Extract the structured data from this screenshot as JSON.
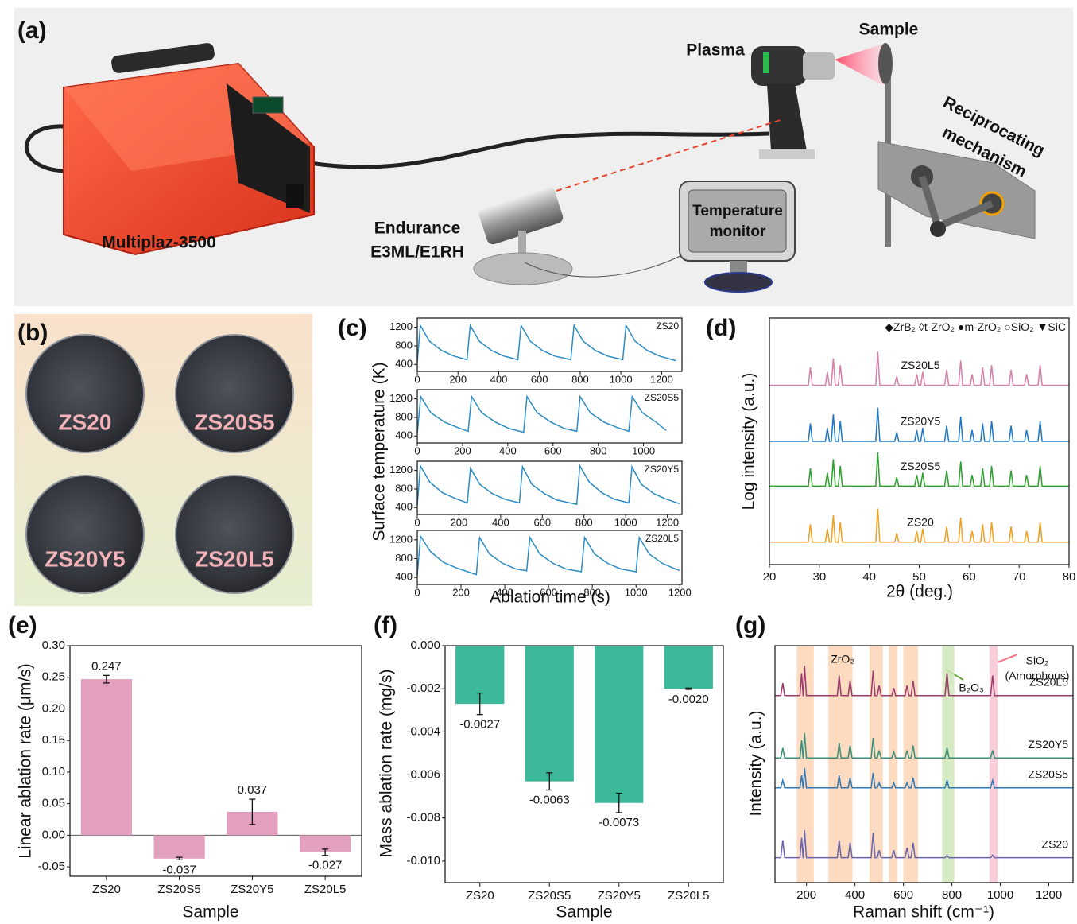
{
  "figure": {
    "panel_labels": [
      "(a)",
      "(b)",
      "(c)",
      "(d)",
      "(e)",
      "(f)",
      "(g)"
    ],
    "diagram": {
      "device": "Multiplaz-3500",
      "plasma": "Plasma",
      "sample": "Sample",
      "mechanism": [
        "Reciprocating",
        "mechanism"
      ],
      "pyrometer": [
        "Endurance",
        "E3ML/E1RH"
      ],
      "monitor": [
        "Temperature",
        "monitor"
      ]
    },
    "photos": {
      "samples": [
        "ZS20",
        "ZS20S5",
        "ZS20Y5",
        "ZS20L5"
      ]
    }
  },
  "chart_data": [
    {
      "type": "line",
      "ylabel": "Surface temperature (K)",
      "xlim": [
        0,
        1300
      ],
      "xticks": [
        0,
        200,
        400,
        600,
        800,
        1000,
        1200
      ],
      "ylim": [
        250,
        1400
      ],
      "yticks": [
        400,
        800,
        1200
      ],
      "series": [
        {
          "name": "ZS20",
          "color": "#2b8cc4",
          "x": [
            0,
            15,
            60,
            120,
            180,
            244,
            260,
            305,
            365,
            425,
            494,
            510,
            555,
            615,
            675,
            754,
            770,
            815,
            875,
            935,
            1009,
            1025,
            1070,
            1130,
            1190,
            1270
          ],
          "values": [
            450,
            1240,
            900,
            700,
            580,
            500,
            1240,
            900,
            700,
            580,
            500,
            1240,
            900,
            700,
            580,
            500,
            1240,
            900,
            700,
            580,
            500,
            1240,
            900,
            700,
            580,
            480
          ]
        }
      ]
    },
    {
      "type": "line",
      "xlim": [
        0,
        1170
      ],
      "xticks": [
        0,
        200,
        400,
        600,
        800,
        1000
      ],
      "ylim": [
        250,
        1400
      ],
      "yticks": [
        400,
        800,
        1200
      ],
      "series": [
        {
          "name": "ZS20S5",
          "color": "#2b8cc4",
          "x": [
            0,
            15,
            60,
            120,
            180,
            225,
            240,
            285,
            345,
            405,
            470,
            485,
            530,
            590,
            650,
            705,
            720,
            765,
            825,
            885,
            935,
            950,
            995,
            1055,
            1100
          ],
          "values": [
            450,
            1250,
            900,
            700,
            580,
            500,
            1250,
            900,
            700,
            560,
            480,
            1250,
            900,
            700,
            560,
            500,
            1250,
            900,
            700,
            580,
            500,
            1250,
            900,
            700,
            520
          ]
        }
      ]
    },
    {
      "type": "line",
      "xlim": [
        0,
        1270
      ],
      "xticks": [
        0,
        200,
        400,
        600,
        800,
        1000,
        1200
      ],
      "ylim": [
        250,
        1400
      ],
      "yticks": [
        400,
        800,
        1200
      ],
      "series": [
        {
          "name": "ZS20Y5",
          "color": "#2b8cc4",
          "x": [
            0,
            15,
            60,
            120,
            180,
            240,
            255,
            300,
            360,
            420,
            490,
            505,
            550,
            610,
            670,
            765,
            780,
            825,
            885,
            945,
            1015,
            1030,
            1075,
            1135,
            1195,
            1260
          ],
          "values": [
            450,
            1300,
            950,
            720,
            600,
            500,
            1250,
            900,
            700,
            580,
            500,
            1280,
            900,
            700,
            560,
            470,
            1300,
            950,
            720,
            580,
            500,
            1280,
            900,
            700,
            580,
            480
          ]
        }
      ]
    },
    {
      "type": "line",
      "xlabel": "Ablation time (s)",
      "xlim": [
        0,
        1210
      ],
      "xticks": [
        0,
        200,
        400,
        600,
        800,
        1000,
        1200
      ],
      "ylim": [
        250,
        1400
      ],
      "yticks": [
        400,
        800,
        1200
      ],
      "series": [
        {
          "name": "ZS20L5",
          "color": "#2b8cc4",
          "x": [
            0,
            15,
            60,
            120,
            180,
            270,
            285,
            330,
            390,
            450,
            500,
            515,
            560,
            620,
            680,
            750,
            765,
            810,
            870,
            930,
            1000,
            1015,
            1060,
            1120,
            1180,
            1200
          ],
          "values": [
            450,
            1280,
            950,
            720,
            600,
            460,
            1250,
            900,
            700,
            580,
            540,
            1250,
            900,
            700,
            580,
            520,
            1250,
            900,
            700,
            580,
            520,
            1250,
            900,
            700,
            580,
            550
          ]
        }
      ]
    },
    {
      "type": "line",
      "xlabel": "2θ (deg.)",
      "ylabel": "Log intensity (a.u.)",
      "xlim": [
        20,
        80
      ],
      "xticks": [
        20,
        30,
        40,
        50,
        60,
        70,
        80
      ],
      "ylim": [
        0,
        11
      ],
      "legend": [
        "◆ZrB₂",
        "◊t-ZrO₂",
        "●m-ZrO₂",
        "○SiO₂",
        "▼SiC"
      ],
      "x": [
        20,
        27.8,
        28.2,
        28.6,
        31.2,
        31.6,
        32.0,
        32.4,
        32.8,
        33.2,
        33.8,
        34.2,
        34.6,
        41.3,
        41.7,
        42.1,
        45.1,
        45.5,
        45.9,
        49.1,
        49.5,
        49.9,
        50.3,
        50.7,
        51.1,
        55.1,
        55.5,
        55.9,
        57.9,
        58.3,
        58.7,
        60.2,
        60.6,
        61.0,
        62.3,
        62.7,
        63.1,
        64.1,
        64.5,
        64.9,
        68.0,
        68.4,
        68.8,
        71.1,
        71.5,
        71.9,
        73.8,
        74.2,
        74.6,
        80
      ],
      "series": [
        {
          "name": "ZS20L5",
          "color": "#d67fa8",
          "values": [
            8,
            8,
            8.8,
            8,
            8,
            8.6,
            8,
            8,
            9.2,
            8,
            8,
            8.9,
            8,
            8,
            9.5,
            8,
            8,
            8.4,
            8,
            8,
            8.5,
            8,
            8,
            8.6,
            8,
            8,
            8.7,
            8,
            8,
            9.1,
            8,
            8,
            8.5,
            8,
            8,
            8.8,
            8,
            8,
            8.9,
            8,
            8,
            8.7,
            8,
            8,
            8.5,
            8,
            8,
            8.9,
            8,
            8
          ]
        },
        {
          "name": "ZS20Y5",
          "color": "#1f77c4",
          "values": [
            5.5,
            5.5,
            6.3,
            5.5,
            5.5,
            6.1,
            5.5,
            5.5,
            6.7,
            5.5,
            5.5,
            6.4,
            5.5,
            5.5,
            7,
            5.5,
            5.5,
            5.9,
            5.5,
            5.5,
            6,
            5.5,
            5.5,
            6.1,
            5.5,
            5.5,
            6.2,
            5.5,
            5.5,
            6.6,
            5.5,
            5.5,
            6,
            5.5,
            5.5,
            6.3,
            5.5,
            5.5,
            6.4,
            5.5,
            5.5,
            6.2,
            5.5,
            5.5,
            6,
            5.5,
            5.5,
            6.4,
            5.5,
            5.5
          ]
        },
        {
          "name": "ZS20S5",
          "color": "#2ca02c",
          "values": [
            3.5,
            3.5,
            4.3,
            3.5,
            3.5,
            4.1,
            3.5,
            3.5,
            4.7,
            3.5,
            3.5,
            4.4,
            3.5,
            3.5,
            5,
            3.5,
            3.5,
            3.9,
            3.5,
            3.5,
            4,
            3.5,
            3.5,
            4.1,
            3.5,
            3.5,
            4.2,
            3.5,
            3.5,
            4.6,
            3.5,
            3.5,
            4,
            3.5,
            3.5,
            4.3,
            3.5,
            3.5,
            4.4,
            3.5,
            3.5,
            4.2,
            3.5,
            3.5,
            4,
            3.5,
            3.5,
            4.4,
            3.5,
            3.5
          ]
        },
        {
          "name": "ZS20",
          "color": "#f0a020",
          "values": [
            1,
            1,
            1.8,
            1,
            1,
            1.6,
            1,
            1,
            2.2,
            1,
            1,
            1.9,
            1,
            1,
            2.5,
            1,
            1,
            1.4,
            1,
            1,
            1.5,
            1,
            1,
            1.6,
            1,
            1,
            1.7,
            1,
            1,
            2.1,
            1,
            1,
            1.5,
            1,
            1,
            1.8,
            1,
            1,
            1.9,
            1,
            1,
            1.7,
            1,
            1,
            1.5,
            1,
            1,
            1.9,
            1,
            1
          ]
        }
      ]
    },
    {
      "type": "bar",
      "xlabel": "Sample",
      "ylabel": "Linear ablation rate (μm/s)",
      "categories": [
        "ZS20",
        "ZS20S5",
        "ZS20Y5",
        "ZS20L5"
      ],
      "values": [
        0.247,
        -0.037,
        0.037,
        -0.027
      ],
      "errors": [
        0.006,
        0.002,
        0.02,
        0.005
      ],
      "color": "#e39fbe",
      "ylim": [
        -0.065,
        0.3
      ],
      "yticks": [
        -0.05,
        {
          "value": 0,
          "label": "0.00"
        },
        0.05,
        {
          "value": 0.1,
          "label": "0.10"
        },
        0.15,
        {
          "value": 0.2,
          "label": "0.20"
        },
        0.25,
        {
          "value": 0.3,
          "label": "0.30"
        }
      ]
    },
    {
      "type": "bar",
      "xlabel": "Sample",
      "ylabel": "Mass ablation rate (mg/s)",
      "categories": [
        "ZS20",
        "ZS20S5",
        "ZS20Y5",
        "ZS20L5"
      ],
      "values": [
        -0.0027,
        -0.0063,
        -0.0073,
        -0.002
      ],
      "value_labels": [
        "-0.0027",
        "-0.0063",
        "-0.0073",
        "-0.0020"
      ],
      "errors": [
        0.0005,
        0.0004,
        0.00045,
        3e-05
      ],
      "color": "#3db89a",
      "ylim": [
        -0.011,
        0
      ],
      "yticks": [
        {
          "value": 0,
          "label": "0.000"
        },
        {
          "value": -0.002,
          "label": "-0.002"
        },
        {
          "value": -0.004,
          "label": "-0.004"
        },
        {
          "value": -0.006,
          "label": "-0.006"
        },
        {
          "value": -0.008,
          "label": "-0.008"
        },
        {
          "value": -0.01,
          "label": "-0.010"
        }
      ]
    },
    {
      "type": "line",
      "xlabel": "Raman shift (cm⁻¹)",
      "ylabel": "Intensity (a.u.)",
      "xlim": [
        70,
        1300
      ],
      "xticks": [
        200,
        400,
        600,
        800,
        1000,
        1200
      ],
      "ylim": [
        0,
        9.5
      ],
      "annotations": [
        "ZrO₂",
        "B₂O₃",
        "SiO₂",
        "(Amorphous)"
      ],
      "bands": [
        {
          "x": [
            160,
            230
          ],
          "color": "#fbd5b5"
        },
        {
          "x": [
            290,
            390
          ],
          "color": "#fbd5b5"
        },
        {
          "x": [
            460,
            515
          ],
          "color": "#fbd5b5"
        },
        {
          "x": [
            540,
            575
          ],
          "color": "#fbd5b5"
        },
        {
          "x": [
            600,
            660
          ],
          "color": "#fbd5b5"
        },
        {
          "x": [
            760,
            810
          ],
          "color": "#cfe6b8"
        },
        {
          "x": [
            955,
            990
          ],
          "color": "#f7c6d3"
        }
      ],
      "x": [
        70,
        94,
        102,
        110,
        173,
        180,
        186,
        187,
        192,
        200,
        327,
        335,
        343,
        372,
        380,
        388,
        467,
        475,
        483,
        492,
        500,
        508,
        552,
        560,
        568,
        607,
        615,
        623,
        632,
        640,
        648,
        772,
        780,
        788,
        960,
        968,
        976,
        1300
      ],
      "series": [
        {
          "name": "ZS20L5",
          "color": "#9c3a6b",
          "values": [
            7.5,
            7.5,
            8,
            7.5,
            7.5,
            8.4,
            7.5,
            7.5,
            8.7,
            7.5,
            7.5,
            8.3,
            7.5,
            7.5,
            8.1,
            7.5,
            7.5,
            8.5,
            7.5,
            7.5,
            7.9,
            7.5,
            7.5,
            7.8,
            7.5,
            7.5,
            7.9,
            7.5,
            7.5,
            8.1,
            7.5,
            7.5,
            8.4,
            7.5,
            7.5,
            8.3,
            7.5,
            7.5
          ]
        },
        {
          "name": "ZS20Y5",
          "color": "#3a8f7a",
          "values": [
            5,
            5,
            5.4,
            5,
            5,
            5.7,
            5,
            5,
            6,
            5,
            5,
            5.6,
            5,
            5,
            5.5,
            5,
            5,
            5.8,
            5,
            5,
            5.3,
            5,
            5,
            5.25,
            5,
            5,
            5.3,
            5,
            5,
            5.5,
            5,
            5,
            5.4,
            5,
            5,
            5.3,
            5,
            5
          ]
        },
        {
          "name": "ZS20S5",
          "color": "#2f78b5",
          "values": [
            3.8,
            3.8,
            4.1,
            3.8,
            3.8,
            4.3,
            3.8,
            3.8,
            4.6,
            3.8,
            3.8,
            4.3,
            3.8,
            3.8,
            4.2,
            3.8,
            3.8,
            4.4,
            3.8,
            3.8,
            4,
            3.8,
            3.8,
            4,
            3.8,
            3.8,
            4,
            3.8,
            3.8,
            4.2,
            3.8,
            3.8,
            4.1,
            3.8,
            3.8,
            4.1,
            3.8,
            3.8
          ]
        },
        {
          "name": "ZS20",
          "color": "#6a64a8",
          "values": [
            1,
            1,
            1.7,
            1,
            1,
            1.8,
            1,
            1,
            2.1,
            1,
            1,
            1.7,
            1,
            1,
            1.6,
            1,
            1,
            2,
            1,
            1,
            1.3,
            1,
            1,
            1.3,
            1,
            1,
            1.4,
            1,
            1,
            1.6,
            1,
            1,
            1.1,
            1,
            1,
            1.1,
            1,
            1
          ]
        }
      ]
    }
  ]
}
